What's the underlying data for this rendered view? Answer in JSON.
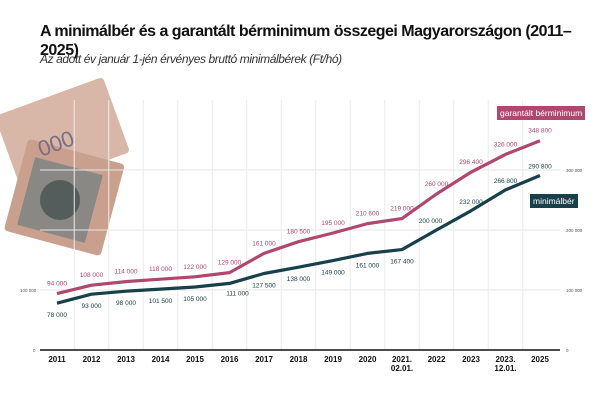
{
  "chart_data": {
    "type": "line",
    "title": "A minimálbér és a garantált bérminimum összegei Magyarországon (2011–2025)",
    "subtitle": "Az adott év január 1-jén érvényes bruttó minimálbérek (Ft/hó)",
    "categories": [
      "2011",
      "2012",
      "2013",
      "2014",
      "2015",
      "2016",
      "2017",
      "2018",
      "2019",
      "2020",
      "2021.\n02.01.",
      "2022",
      "2023",
      "2023.\n12.01.",
      "2025"
    ],
    "ylim": [
      0,
      350000
    ],
    "yticks": [
      0,
      100000,
      200000,
      300000
    ],
    "ytick_labels": [
      "0",
      "100 000",
      "200 000",
      "300 000"
    ],
    "grid": true,
    "legend_placement": "right",
    "series": [
      {
        "name": "garantált bérminimum",
        "color": "#b0476f",
        "values": [
          94000,
          108000,
          114000,
          118000,
          122000,
          129000,
          161000,
          180500,
          195000,
          210600,
          219000,
          260000,
          296400,
          326000,
          348800
        ],
        "labels": [
          "94 000",
          "108 000",
          "114 000",
          "118 000",
          "122 000",
          "129 000",
          "161 000",
          "180 500",
          "195 000",
          "210 600",
          "219 000",
          "260 000",
          "296 400",
          "326 000",
          "348 800"
        ]
      },
      {
        "name": "minimálbér",
        "color": "#17404a",
        "values": [
          78000,
          93000,
          98000,
          101500,
          105000,
          111000,
          127500,
          138000,
          149000,
          161000,
          167400,
          200000,
          232000,
          266800,
          290800
        ],
        "labels": [
          "78 000",
          "93 000",
          "98 000",
          "101 500",
          "105 000",
          "111 000",
          "127 500",
          "138 000",
          "149 000",
          "161 000",
          "167 400",
          "200 000",
          "232 000",
          "266 800",
          "290 800"
        ]
      }
    ]
  }
}
